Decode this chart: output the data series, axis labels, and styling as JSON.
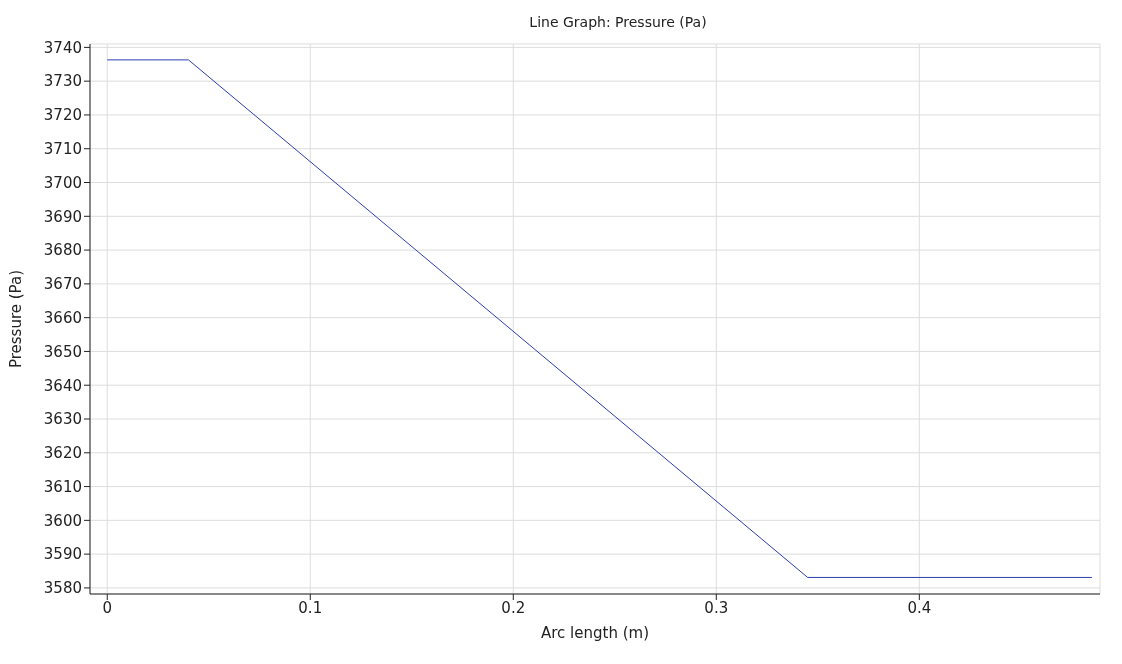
{
  "chart_data": {
    "type": "line",
    "title": "Line Graph: Pressure (Pa)",
    "xlabel": "Arc length (m)",
    "ylabel": "Pressure (Pa)",
    "x": [
      0,
      0.04,
      0.345,
      0.485
    ],
    "series": [
      {
        "color": "#2a3fb0",
        "values": [
          3736.3,
          3736.3,
          3583.1,
          3583.1
        ]
      }
    ],
    "xlim": [
      -0.0085,
      0.489
    ],
    "xticks": [
      0,
      0.1,
      0.2,
      0.3,
      0.4
    ],
    "ylim": [
      3578.2,
      3741
    ],
    "yticks": [
      3580,
      3590,
      3600,
      3610,
      3620,
      3630,
      3640,
      3650,
      3660,
      3670,
      3680,
      3690,
      3700,
      3710,
      3720,
      3730,
      3740
    ],
    "grid": true,
    "marker": "none",
    "line_style": "solid"
  }
}
